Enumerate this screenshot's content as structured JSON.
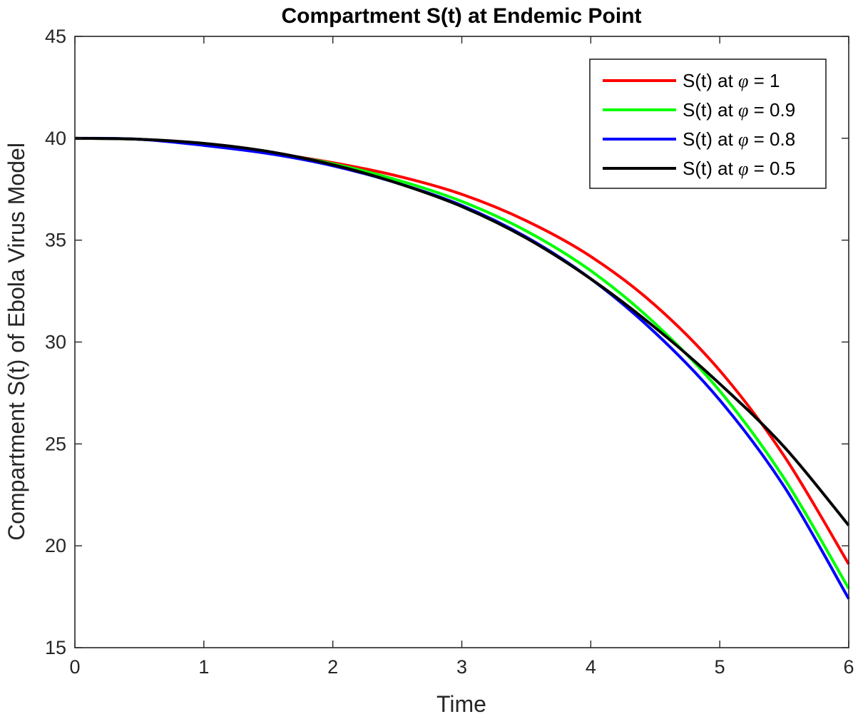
{
  "chart_data": {
    "type": "line",
    "title": "Compartment S(t) at Endemic Point",
    "xlabel": "Time",
    "ylabel": "Compartment S(t) of Ebola Virus Model",
    "xlim": [
      0,
      6
    ],
    "ylim": [
      15,
      45
    ],
    "xticks": [
      "0",
      "1",
      "2",
      "3",
      "4",
      "5",
      "6"
    ],
    "yticks": [
      "15",
      "20",
      "25",
      "30",
      "35",
      "40",
      "45"
    ],
    "grid": false,
    "legend_position": "top-right",
    "x": [
      0,
      0.5,
      1,
      1.5,
      2,
      2.5,
      3,
      3.5,
      4,
      4.5,
      5,
      5.5,
      6
    ],
    "series": [
      {
        "name_prefix": "S(t) at ",
        "symbol": "φ",
        "name_suffix": " = 1",
        "color": "#ff0000",
        "values": [
          40.0,
          39.95,
          39.7,
          39.3,
          38.8,
          38.15,
          37.25,
          35.95,
          34.2,
          31.8,
          28.6,
          24.4,
          19.1
        ]
      },
      {
        "name_prefix": "S(t) at ",
        "symbol": "φ",
        "name_suffix": " = 0.9",
        "color": "#00ff00",
        "values": [
          40.0,
          39.95,
          39.7,
          39.3,
          38.75,
          37.95,
          36.9,
          35.45,
          33.5,
          30.9,
          27.6,
          23.3,
          17.9
        ]
      },
      {
        "name_prefix": "S(t) at ",
        "symbol": "φ",
        "name_suffix": " = 0.8",
        "color": "#0000ff",
        "values": [
          40.0,
          39.95,
          39.65,
          39.25,
          38.65,
          37.8,
          36.7,
          35.15,
          33.1,
          30.45,
          27.15,
          22.9,
          17.4
        ]
      },
      {
        "name_prefix": "S(t) at ",
        "symbol": "φ",
        "name_suffix": " = 0.5",
        "color": "#000000",
        "values": [
          40.0,
          39.95,
          39.75,
          39.35,
          38.7,
          37.8,
          36.65,
          35.1,
          33.1,
          30.7,
          27.95,
          24.85,
          21.0
        ]
      }
    ]
  }
}
